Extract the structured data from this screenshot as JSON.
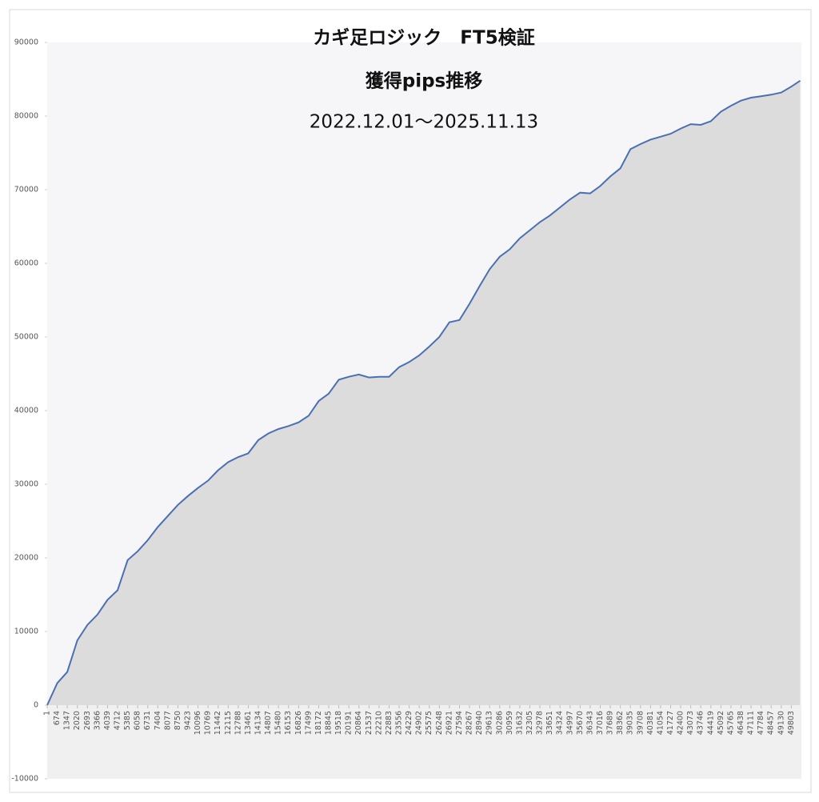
{
  "chart_data": {
    "type": "area",
    "title": "カギ足ロジック　FT5検証",
    "subtitle": "獲得pips推移",
    "date_range": "2022.12.01～2025.11.13",
    "x": [
      1,
      674,
      1347,
      2020,
      2693,
      3366,
      4039,
      4712,
      5385,
      6058,
      6731,
      7404,
      8077,
      8750,
      9423,
      10096,
      10769,
      11442,
      12115,
      12788,
      13461,
      14134,
      14807,
      15480,
      16153,
      16826,
      17499,
      18172,
      18845,
      19518,
      20191,
      20864,
      21537,
      22210,
      22883,
      23556,
      24229,
      24902,
      25575,
      26248,
      26921,
      27594,
      28267,
      28940,
      29613,
      30286,
      30959,
      31632,
      32305,
      32978,
      33651,
      34324,
      34997,
      35670,
      36343,
      37016,
      37689,
      38362,
      39035,
      39708,
      40381,
      41054,
      41727,
      42400,
      43073,
      43746,
      44419,
      45092,
      45765,
      46438,
      47111,
      47784,
      48457,
      49130,
      49803,
      50400
    ],
    "values": [
      0,
      3000,
      4500,
      8800,
      10900,
      12300,
      14300,
      15600,
      19700,
      20900,
      22400,
      24200,
      25700,
      27200,
      28400,
      29500,
      30500,
      31900,
      33000,
      33700,
      34200,
      36000,
      36900,
      37500,
      37900,
      38400,
      39300,
      41300,
      42300,
      44200,
      44600,
      44900,
      44500,
      44600,
      44600,
      45900,
      46600,
      47500,
      48700,
      50000,
      52000,
      52300,
      54500,
      56900,
      59200,
      60900,
      61900,
      63400,
      64500,
      65600,
      66500,
      67600,
      68700,
      69600,
      69500,
      70500,
      71800,
      72900,
      75500,
      76200,
      76800,
      77200,
      77600,
      78300,
      78900,
      78800,
      79300,
      80600,
      81400,
      82100,
      82500,
      82700,
      82900,
      83200,
      84000,
      84800
    ],
    "color": "#4a6fb5",
    "fill": "#dcdcdc",
    "xlim": [
      1,
      50480
    ],
    "xticks": [
      1,
      674,
      1347,
      2020,
      2693,
      3366,
      4039,
      4712,
      5385,
      6058,
      6731,
      7404,
      8077,
      8750,
      9423,
      10096,
      10769,
      11442,
      12115,
      12788,
      13461,
      14134,
      14807,
      15480,
      16153,
      16826,
      17499,
      18172,
      18845,
      19518,
      20191,
      20864,
      21537,
      22210,
      22883,
      23556,
      24229,
      24902,
      25575,
      26248,
      26921,
      27594,
      28267,
      28940,
      29613,
      30286,
      30959,
      31632,
      32305,
      32978,
      33651,
      34324,
      34997,
      35670,
      36343,
      37016,
      37689,
      38362,
      39035,
      39708,
      40381,
      41054,
      41727,
      42400,
      43073,
      43746,
      44419,
      45092,
      45765,
      46438,
      47111,
      47784,
      48457,
      49130,
      49803
    ],
    "ylim": [
      -10000,
      90000
    ],
    "yticks": [
      -10000,
      0,
      10000,
      20000,
      30000,
      40000,
      50000,
      60000,
      70000,
      80000,
      90000
    ]
  }
}
